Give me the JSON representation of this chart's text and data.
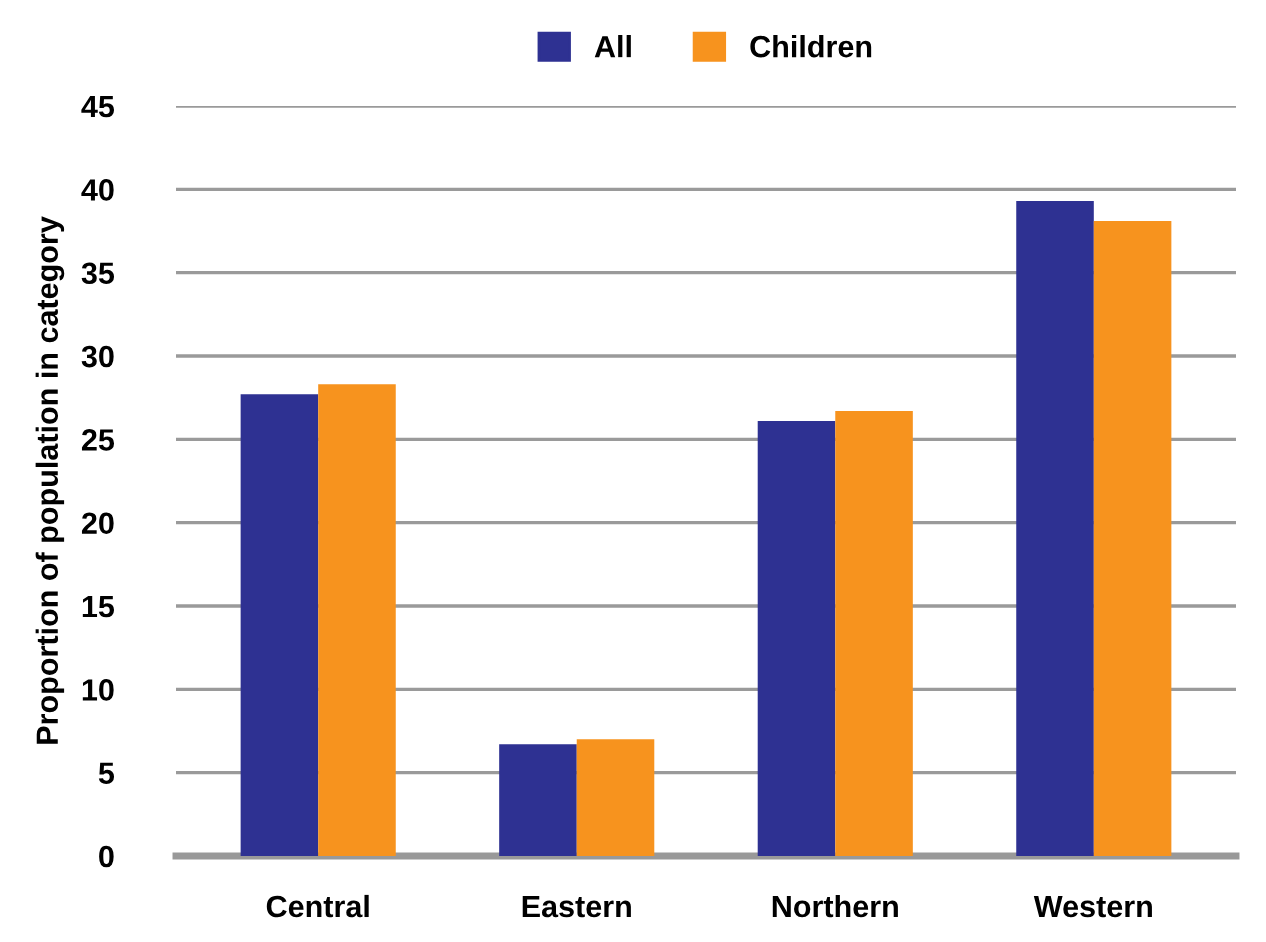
{
  "chart_data": {
    "type": "bar",
    "ylabel": "Proportion of population in category",
    "categories": [
      "Central",
      "Eastern",
      "Northern",
      "Western"
    ],
    "series": [
      {
        "name": "All",
        "color": "#2e3192",
        "values": [
          27.7,
          6.7,
          26.1,
          39.3
        ]
      },
      {
        "name": "Children",
        "color": "#f7931e",
        "values": [
          28.3,
          7.0,
          26.7,
          38.1
        ]
      }
    ],
    "ylim": [
      0,
      45
    ],
    "yticks": [
      0,
      5,
      10,
      15,
      20,
      25,
      30,
      35,
      40,
      45
    ],
    "grid": "y",
    "legend": "top"
  }
}
